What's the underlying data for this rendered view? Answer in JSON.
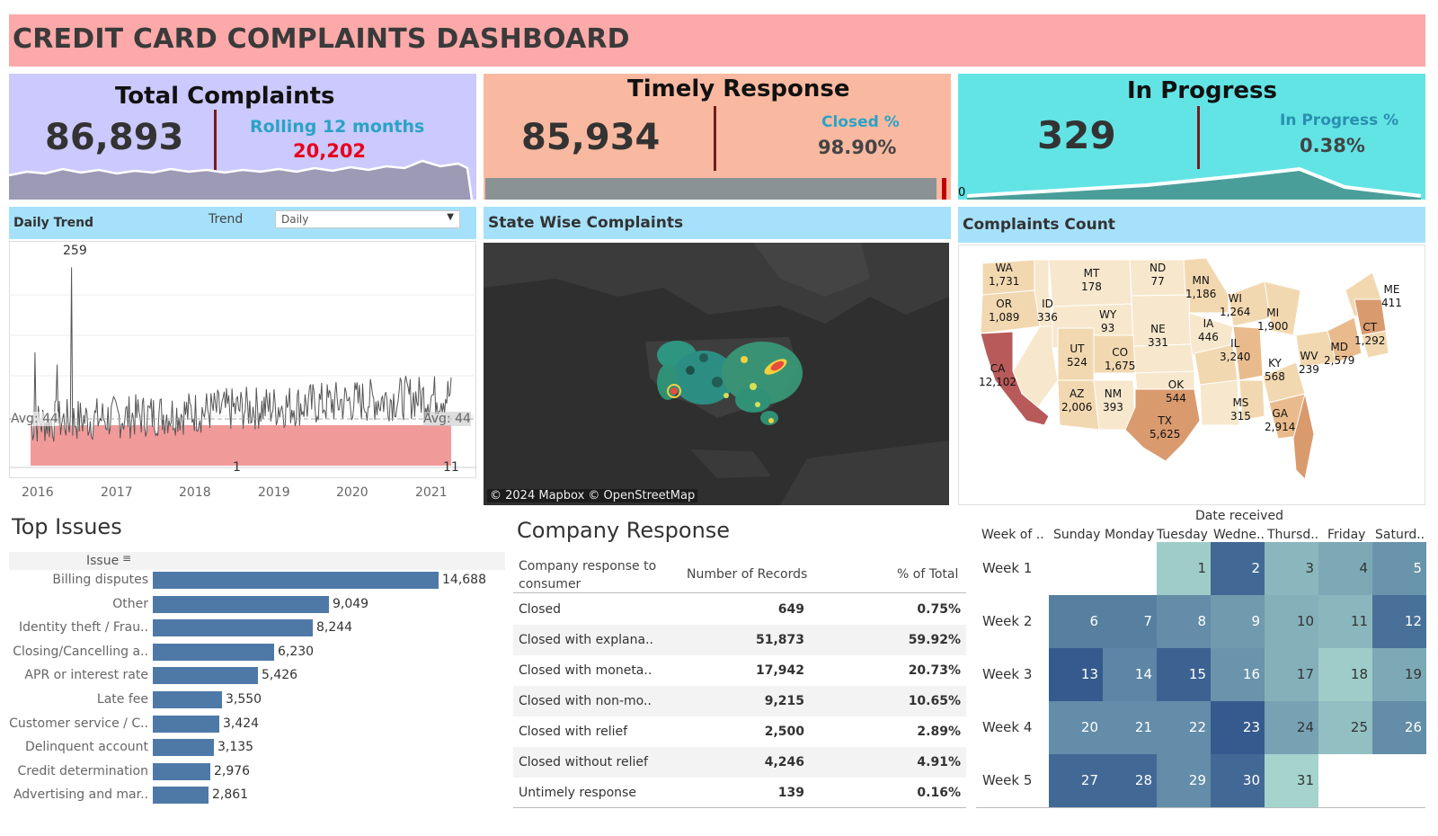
{
  "title": "CREDIT CARD COMPLAINTS DASHBOARD",
  "kpis": {
    "total": {
      "heading": "Total Complaints",
      "value": "86,893",
      "sub_label": "Rolling 12 months",
      "sub_value": "20,202"
    },
    "timely": {
      "heading": "Timely Response",
      "value": "85,934",
      "sub_label": "Closed %",
      "sub_value": "98.90%",
      "bar_fraction": 0.989
    },
    "progress": {
      "heading": "In Progress",
      "value": "329",
      "sub_label": "In Progress %",
      "sub_value": "0.38%",
      "axis_label": "0"
    }
  },
  "daily_trend": {
    "panel_title": "Daily Trend",
    "trend_label": "Trend",
    "trend_selected": "Daily",
    "max_label": "259",
    "min_label_1": "1",
    "min_label_2": "11",
    "avg_left": "Avg: 44",
    "avg_right": "Avg: 44",
    "years": [
      "2016",
      "2017",
      "2018",
      "2019",
      "2020",
      "2021"
    ]
  },
  "state_wise": {
    "panel_title": "State Wise Complaints",
    "attribution": "© 2024 Mapbox © OpenStreetMap"
  },
  "complaints_count": {
    "panel_title": "Complaints Count",
    "states": [
      {
        "abbr": "WA",
        "value": "1,731"
      },
      {
        "abbr": "OR",
        "value": "1,089"
      },
      {
        "abbr": "ID",
        "value": "336"
      },
      {
        "abbr": "MT",
        "value": "178"
      },
      {
        "abbr": "ND",
        "value": "77"
      },
      {
        "abbr": "MN",
        "value": "1,186"
      },
      {
        "abbr": "WY",
        "value": "93"
      },
      {
        "abbr": "WI",
        "value": "1,264"
      },
      {
        "abbr": "MI",
        "value": "1,900"
      },
      {
        "abbr": "ME",
        "value": "411"
      },
      {
        "abbr": "NE",
        "value": "331"
      },
      {
        "abbr": "IA",
        "value": "446"
      },
      {
        "abbr": "UT",
        "value": "524"
      },
      {
        "abbr": "CO",
        "value": "1,675"
      },
      {
        "abbr": "IL",
        "value": "3,240"
      },
      {
        "abbr": "CT",
        "value": "1,292"
      },
      {
        "abbr": "CA",
        "value": "12,102"
      },
      {
        "abbr": "WV",
        "value": "239"
      },
      {
        "abbr": "MD",
        "value": "2,579"
      },
      {
        "abbr": "KY",
        "value": "568"
      },
      {
        "abbr": "AZ",
        "value": "2,006"
      },
      {
        "abbr": "NM",
        "value": "393"
      },
      {
        "abbr": "OK",
        "value": "544"
      },
      {
        "abbr": "MS",
        "value": "315"
      },
      {
        "abbr": "GA",
        "value": "2,914"
      },
      {
        "abbr": "TX",
        "value": "5,625"
      }
    ]
  },
  "top_issues": {
    "title": "Top Issues",
    "column_header": "Issue",
    "items": [
      {
        "label": "Billing disputes",
        "value": 14688,
        "display": "14,688"
      },
      {
        "label": "Other",
        "value": 9049,
        "display": "9,049"
      },
      {
        "label": "Identity theft / Frau..",
        "value": 8244,
        "display": "8,244"
      },
      {
        "label": "Closing/Cancelling a..",
        "value": 6230,
        "display": "6,230"
      },
      {
        "label": "APR or interest rate",
        "value": 5426,
        "display": "5,426"
      },
      {
        "label": "Late fee",
        "value": 3550,
        "display": "3,550"
      },
      {
        "label": "Customer service / C..",
        "value": 3424,
        "display": "3,424"
      },
      {
        "label": "Delinquent account",
        "value": 3135,
        "display": "3,135"
      },
      {
        "label": "Credit determination",
        "value": 2976,
        "display": "2,976"
      },
      {
        "label": "Advertising and mar..",
        "value": 2861,
        "display": "2,861"
      }
    ]
  },
  "company_response": {
    "title": "Company Response",
    "headers": [
      "Company response to consumer",
      "Number of Records",
      "% of Total"
    ],
    "rows": [
      {
        "response": "Closed",
        "records": "649",
        "pct": "0.75%"
      },
      {
        "response": "Closed with explana..",
        "records": "51,873",
        "pct": "59.92%"
      },
      {
        "response": "Closed with moneta..",
        "records": "17,942",
        "pct": "20.73%"
      },
      {
        "response": "Closed with non-mo..",
        "records": "9,215",
        "pct": "10.65%"
      },
      {
        "response": "Closed with relief",
        "records": "2,500",
        "pct": "2.89%"
      },
      {
        "response": "Closed without relief",
        "records": "4,246",
        "pct": "4.91%"
      },
      {
        "response": "Untimely response",
        "records": "139",
        "pct": "0.16%"
      }
    ]
  },
  "calendar": {
    "axis_title": "Date received",
    "week_header": "Week of ..",
    "days": [
      "Sunday",
      "Monday",
      "Tuesday",
      "Wedne..",
      "Thursd..",
      "Friday",
      "Saturd.."
    ],
    "weeks": [
      "Week 1",
      "Week 2",
      "Week 3",
      "Week 4",
      "Week 5"
    ]
  },
  "chart_data": [
    {
      "type": "bar",
      "title": "Top Issues",
      "categories": [
        "Billing disputes",
        "Other",
        "Identity theft / Frau..",
        "Closing/Cancelling a..",
        "APR or interest rate",
        "Late fee",
        "Customer service / C..",
        "Delinquent account",
        "Credit determination",
        "Advertising and mar.."
      ],
      "values": [
        14688,
        9049,
        8244,
        6230,
        5426,
        3550,
        3424,
        3135,
        2976,
        2861
      ],
      "orientation": "horizontal"
    },
    {
      "type": "heatmap",
      "title": "Date received",
      "x": [
        "Sunday",
        "Monday",
        "Tuesday",
        "Wedne..",
        "Thursd..",
        "Friday",
        "Saturd.."
      ],
      "y": [
        "Week 1",
        "Week 2",
        "Week 3",
        "Week 4",
        "Week 5"
      ],
      "cells": [
        {
          "day": 1,
          "week": 0,
          "col": 2,
          "intensity": 0.15
        },
        {
          "day": 2,
          "week": 0,
          "col": 3,
          "intensity": 0.85
        },
        {
          "day": 3,
          "week": 0,
          "col": 4,
          "intensity": 0.3
        },
        {
          "day": 4,
          "week": 0,
          "col": 5,
          "intensity": 0.4
        },
        {
          "day": 5,
          "week": 0,
          "col": 6,
          "intensity": 0.55
        },
        {
          "day": 6,
          "week": 1,
          "col": 0,
          "intensity": 0.7
        },
        {
          "day": 7,
          "week": 1,
          "col": 1,
          "intensity": 0.7
        },
        {
          "day": 8,
          "week": 1,
          "col": 2,
          "intensity": 0.6
        },
        {
          "day": 9,
          "week": 1,
          "col": 3,
          "intensity": 0.5
        },
        {
          "day": 10,
          "week": 1,
          "col": 4,
          "intensity": 0.35
        },
        {
          "day": 11,
          "week": 1,
          "col": 5,
          "intensity": 0.3
        },
        {
          "day": 12,
          "week": 1,
          "col": 6,
          "intensity": 0.8
        },
        {
          "day": 13,
          "week": 2,
          "col": 0,
          "intensity": 0.95
        },
        {
          "day": 14,
          "week": 2,
          "col": 1,
          "intensity": 0.65
        },
        {
          "day": 15,
          "week": 2,
          "col": 2,
          "intensity": 0.9
        },
        {
          "day": 16,
          "week": 2,
          "col": 3,
          "intensity": 0.55
        },
        {
          "day": 17,
          "week": 2,
          "col": 4,
          "intensity": 0.35
        },
        {
          "day": 18,
          "week": 2,
          "col": 5,
          "intensity": 0.15
        },
        {
          "day": 19,
          "week": 2,
          "col": 6,
          "intensity": 0.4
        },
        {
          "day": 20,
          "week": 3,
          "col": 0,
          "intensity": 0.6
        },
        {
          "day": 21,
          "week": 3,
          "col": 1,
          "intensity": 0.6
        },
        {
          "day": 22,
          "week": 3,
          "col": 2,
          "intensity": 0.6
        },
        {
          "day": 23,
          "week": 3,
          "col": 3,
          "intensity": 0.95
        },
        {
          "day": 24,
          "week": 3,
          "col": 4,
          "intensity": 0.45
        },
        {
          "day": 25,
          "week": 3,
          "col": 5,
          "intensity": 0.25
        },
        {
          "day": 26,
          "week": 3,
          "col": 6,
          "intensity": 0.6
        },
        {
          "day": 27,
          "week": 4,
          "col": 0,
          "intensity": 0.85
        },
        {
          "day": 28,
          "week": 4,
          "col": 1,
          "intensity": 0.85
        },
        {
          "day": 29,
          "week": 4,
          "col": 2,
          "intensity": 0.6
        },
        {
          "day": 30,
          "week": 4,
          "col": 3,
          "intensity": 0.85
        },
        {
          "day": 31,
          "week": 4,
          "col": 4,
          "intensity": 0.1
        }
      ]
    }
  ],
  "colors": {
    "title_bg": "#fda9a9",
    "kpi_total_bg": "#cbc9fd",
    "kpi_timely_bg": "#f9b9a0",
    "kpi_progress_bg": "#62e4e5",
    "panel_head_bg": "#a6e1fb",
    "bar": "#4e79a7",
    "accent_red": "#e8001c",
    "accent_teal": "#2aa3c8"
  }
}
